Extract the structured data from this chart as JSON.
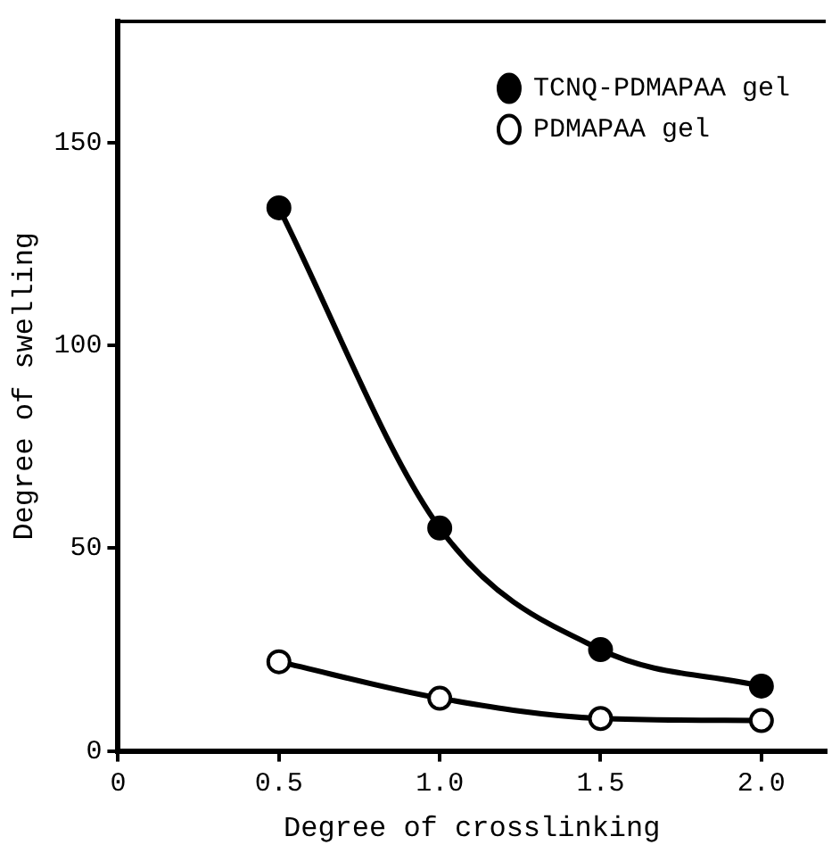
{
  "chart_data": {
    "type": "line",
    "xlabel": "Degree of crosslinking",
    "ylabel": "Degree of swelling",
    "xlim": [
      0,
      2.2
    ],
    "xticks": [
      0,
      0.5,
      {
        "value": 1,
        "label": "1.0"
      },
      1.5,
      {
        "value": 2,
        "label": "2.0"
      }
    ],
    "ylim": [
      0,
      180
    ],
    "yticks": [
      0,
      50,
      100,
      150
    ],
    "grid": false,
    "legend": "top right",
    "marker": "circle",
    "line_style": "solid",
    "x": [
      0.5,
      1,
      1.5,
      2
    ],
    "series": [
      {
        "name": "TCNQ-PDMAPAA gel",
        "color": "#000000",
        "values": [
          134,
          55,
          25,
          16
        ]
      },
      {
        "name": "PDMAPAA gel",
        "color": "#000000",
        "values": [
          22,
          13,
          8,
          7.5
        ]
      }
    ]
  }
}
